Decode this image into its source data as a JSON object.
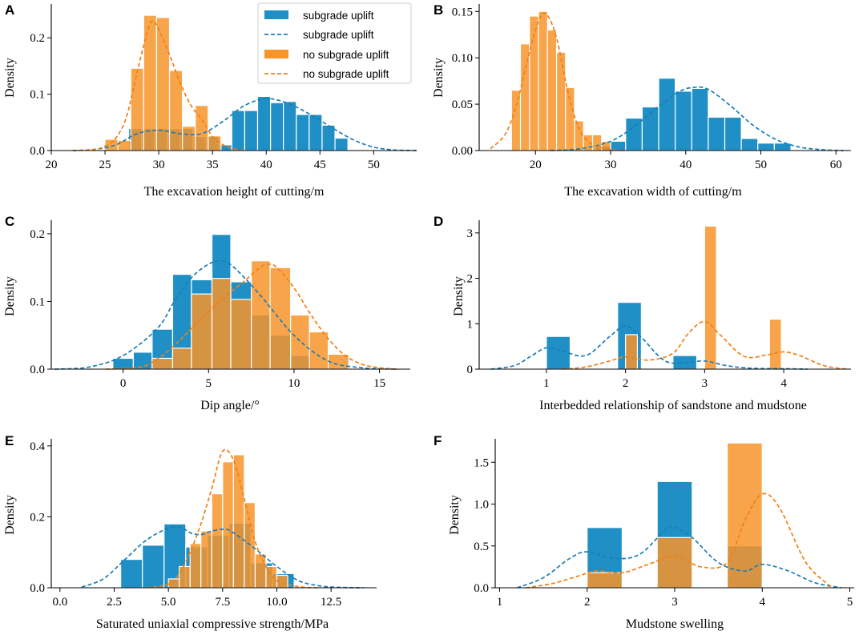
{
  "colors": {
    "uplift": "#1f8fc6",
    "no_uplift": "#f7942a",
    "uplift_line": "#1b7db5",
    "no_uplift_line": "#f27f14"
  },
  "legend": {
    "items": [
      {
        "label": "subgrade uplift",
        "kind": "bar",
        "series": "uplift"
      },
      {
        "label": "subgrade uplift",
        "kind": "line",
        "series": "uplift"
      },
      {
        "label": "no subgrade uplift",
        "kind": "bar",
        "series": "no_uplift"
      },
      {
        "label": "no subgrade uplift",
        "kind": "line",
        "series": "no_uplift"
      }
    ]
  },
  "chart_data": [
    {
      "id": "A",
      "type": "bar",
      "xlabel": "The excavation height of cutting/m",
      "ylabel": "Density",
      "xlim": [
        20,
        54
      ],
      "ylim": [
        0,
        0.26
      ],
      "xticks": [
        20,
        25,
        30,
        35,
        40,
        45,
        50
      ],
      "xtick_labels": [
        "20",
        "25",
        "30",
        "35",
        "40",
        "45",
        "50"
      ],
      "yticks": [
        0,
        0.1,
        0.2
      ],
      "ytick_labels": [
        "0.0",
        "0.1",
        "0.2"
      ],
      "hist": {
        "uplift": {
          "edges": [
            27.2,
            28.4,
            29.6,
            30.8,
            32.0,
            33.2,
            34.4,
            35.6,
            36.8,
            38.0,
            39.2,
            40.4,
            41.6,
            42.8,
            44.0,
            45.2,
            46.4,
            47.6
          ],
          "values": [
            0.039,
            0.039,
            0.039,
            0.039,
            0.039,
            0.025,
            0.025,
            0.01,
            0.071,
            0.071,
            0.096,
            0.085,
            0.087,
            0.064,
            0.064,
            0.045,
            0.022
          ]
        },
        "no_uplift": {
          "edges": [
            25.0,
            26.2,
            27.4,
            28.6,
            29.8,
            31.0,
            32.2,
            33.4,
            34.6,
            35.8
          ],
          "values": [
            0.02,
            0.018,
            0.146,
            0.24,
            0.236,
            0.142,
            0.043,
            0.08,
            0.026
          ]
        }
      },
      "kde": {
        "uplift": {
          "x": [
            22,
            24,
            26,
            28,
            30,
            32,
            34,
            36,
            38,
            40,
            42,
            44,
            46,
            48,
            50,
            52,
            54
          ],
          "y": [
            0.0,
            0.002,
            0.01,
            0.03,
            0.036,
            0.03,
            0.03,
            0.052,
            0.08,
            0.092,
            0.084,
            0.065,
            0.042,
            0.02,
            0.006,
            0.001,
            0.0
          ]
        },
        "no_uplift": {
          "x": [
            22,
            24,
            25,
            26,
            27,
            28,
            29,
            29.5,
            30,
            31,
            32,
            33,
            34,
            35,
            36,
            37,
            38
          ],
          "y": [
            0.0,
            0.002,
            0.008,
            0.022,
            0.06,
            0.14,
            0.215,
            0.23,
            0.215,
            0.17,
            0.12,
            0.08,
            0.055,
            0.025,
            0.01,
            0.003,
            0.0
          ]
        }
      }
    },
    {
      "id": "B",
      "type": "bar",
      "xlabel": "The excavation width of cutting/m",
      "ylabel": "Density",
      "xlim": [
        12.5,
        62
      ],
      "ylim": [
        0,
        0.158
      ],
      "xticks": [
        20,
        30,
        40,
        50,
        60
      ],
      "xtick_labels": [
        "20",
        "30",
        "40",
        "50",
        "60"
      ],
      "yticks": [
        0,
        0.05,
        0.1,
        0.15
      ],
      "ytick_labels": [
        "0.00",
        "0.05",
        "0.10",
        "0.15"
      ],
      "hist": {
        "uplift": {
          "edges": [
            28.0,
            30.0,
            32.0,
            34.2,
            36.4,
            38.6,
            40.8,
            43.0,
            45.2,
            47.4,
            49.6,
            51.8,
            54.0
          ],
          "values": [
            0.005,
            0.01,
            0.035,
            0.047,
            0.078,
            0.064,
            0.067,
            0.036,
            0.036,
            0.013,
            0.008,
            0.008
          ]
        },
        "no_uplift": {
          "edges": [
            16.8,
            18.0,
            19.2,
            20.4,
            21.6,
            22.8,
            24.0,
            25.2,
            26.4,
            27.6,
            28.8,
            30.0
          ],
          "values": [
            0.065,
            0.115,
            0.145,
            0.15,
            0.13,
            0.106,
            0.068,
            0.032,
            0.017,
            0.017,
            0.01
          ]
        }
      },
      "kde": {
        "uplift": {
          "x": [
            22,
            26,
            30,
            33,
            36,
            39,
            41,
            43,
            46,
            49,
            52,
            55,
            58,
            61
          ],
          "y": [
            0.0,
            0.002,
            0.01,
            0.025,
            0.045,
            0.063,
            0.068,
            0.066,
            0.048,
            0.027,
            0.012,
            0.004,
            0.001,
            0.0
          ]
        },
        "no_uplift": {
          "x": [
            14,
            16,
            17.5,
            19,
            20,
            21,
            22,
            23,
            24,
            25,
            26,
            27,
            28,
            30,
            32
          ],
          "y": [
            0.002,
            0.018,
            0.05,
            0.1,
            0.13,
            0.148,
            0.14,
            0.115,
            0.075,
            0.042,
            0.02,
            0.01,
            0.005,
            0.001,
            0.0
          ]
        }
      }
    },
    {
      "id": "C",
      "type": "bar",
      "xlabel": "Dip angle/°",
      "ylabel": "Density",
      "xlim": [
        -4.2,
        16.8
      ],
      "ylim": [
        0,
        0.22
      ],
      "xticks": [
        0,
        5,
        10,
        15
      ],
      "xtick_labels": [
        "0",
        "5",
        "10",
        "15"
      ],
      "yticks": [
        0,
        0.1,
        0.2
      ],
      "ytick_labels": [
        "0.0",
        "0.1",
        "0.2"
      ],
      "hist": {
        "uplift": {
          "edges": [
            -0.6,
            0.6,
            1.7,
            2.9,
            4.0,
            5.2,
            6.3,
            7.5,
            8.6,
            9.8,
            10.9
          ],
          "values": [
            0.016,
            0.025,
            0.059,
            0.14,
            0.132,
            0.199,
            0.129,
            0.08,
            0.05,
            0.02
          ]
        },
        "no_uplift": {
          "edges": [
            1.7,
            2.9,
            4.0,
            5.2,
            6.3,
            7.5,
            8.6,
            9.8,
            10.9,
            12.0,
            13.2
          ],
          "values": [
            0.016,
            0.031,
            0.111,
            0.134,
            0.103,
            0.16,
            0.15,
            0.08,
            0.055,
            0.022
          ]
        }
      },
      "kde": {
        "uplift": {
          "x": [
            -4,
            -2,
            0,
            2,
            3,
            4,
            5,
            5.8,
            6.5,
            8,
            10,
            12,
            14,
            16
          ],
          "y": [
            0.0,
            0.003,
            0.02,
            0.06,
            0.1,
            0.135,
            0.155,
            0.16,
            0.15,
            0.11,
            0.05,
            0.012,
            0.002,
            0.0
          ]
        },
        "no_uplift": {
          "x": [
            -1,
            1,
            2,
            3,
            4,
            5,
            6,
            7,
            8,
            8.5,
            9,
            10,
            11,
            12,
            13,
            14,
            15,
            16
          ],
          "y": [
            0.0,
            0.003,
            0.015,
            0.035,
            0.06,
            0.085,
            0.108,
            0.128,
            0.15,
            0.155,
            0.15,
            0.12,
            0.08,
            0.045,
            0.02,
            0.007,
            0.002,
            0.0
          ]
        }
      }
    },
    {
      "id": "D",
      "type": "bar",
      "xlabel": "Interbedded relationship of sandstone and mudstone",
      "ylabel": "Density",
      "xlim": [
        0.15,
        4.85
      ],
      "ylim": [
        0,
        3.28
      ],
      "xticks": [
        1,
        2,
        3,
        4
      ],
      "xtick_labels": [
        "1",
        "2",
        "3",
        "4"
      ],
      "yticks": [
        0,
        1,
        2,
        3
      ],
      "ytick_labels": [
        "0",
        "1",
        "2",
        "3"
      ],
      "hist": {
        "uplift": {
          "edges": [
            1.0,
            1.3,
            1.9,
            2.2,
            2.6,
            2.9
          ],
          "values": [
            0.72,
            0.0,
            1.47,
            0.0,
            0.3
          ]
        },
        "no_uplift": {
          "edges": [
            2.0,
            2.15,
            3.0,
            3.15,
            3.82,
            3.97
          ],
          "values": [
            0.76,
            0.0,
            3.15,
            0.0,
            1.1
          ]
        }
      },
      "kde": {
        "uplift": {
          "x": [
            0.3,
            0.6,
            0.8,
            1.0,
            1.2,
            1.5,
            1.8,
            2.0,
            2.2,
            2.5,
            2.8,
            3.0,
            3.3,
            3.6,
            4.0,
            4.3
          ],
          "y": [
            0.0,
            0.08,
            0.28,
            0.47,
            0.4,
            0.3,
            0.72,
            0.95,
            0.7,
            0.18,
            0.15,
            0.18,
            0.07,
            0.02,
            0.01,
            0.0
          ]
        },
        "no_uplift": {
          "x": [
            1.2,
            1.5,
            1.8,
            2.0,
            2.3,
            2.6,
            2.8,
            3.0,
            3.2,
            3.5,
            3.8,
            4.0,
            4.2,
            4.5,
            4.8
          ],
          "y": [
            0.0,
            0.05,
            0.18,
            0.27,
            0.2,
            0.35,
            0.8,
            1.05,
            0.75,
            0.28,
            0.32,
            0.38,
            0.3,
            0.08,
            0.0
          ]
        }
      }
    },
    {
      "id": "E",
      "type": "bar",
      "xlabel": "Saturated uniaxial compressive strength/MPa",
      "ylabel": "Density",
      "xlim": [
        -0.4,
        14.6
      ],
      "ylim": [
        0,
        0.42
      ],
      "xticks": [
        0,
        2.5,
        5,
        7.5,
        10,
        12.5
      ],
      "xtick_labels": [
        "0.0",
        "2.5",
        "5.0",
        "7.5",
        "10.0",
        "12.5"
      ],
      "yticks": [
        0,
        0.2,
        0.4
      ],
      "ytick_labels": [
        "0.0",
        "0.2",
        "0.4"
      ],
      "hist": {
        "uplift": {
          "edges": [
            2.8,
            3.8,
            4.8,
            5.8,
            6.8,
            7.8,
            8.8,
            9.8,
            10.8
          ],
          "values": [
            0.08,
            0.12,
            0.18,
            0.115,
            0.148,
            0.182,
            0.07,
            0.04,
            0.04
          ]
        },
        "no_uplift": {
          "edges": [
            5.0,
            5.5,
            6.0,
            6.5,
            7.0,
            7.5,
            8.0,
            8.5,
            9.0,
            9.5,
            10.0,
            10.5
          ],
          "values": [
            0.025,
            0.06,
            0.125,
            0.16,
            0.265,
            0.355,
            0.375,
            0.24,
            0.095,
            0.06,
            0.035
          ]
        }
      },
      "kde": {
        "uplift": {
          "x": [
            1,
            2,
            3,
            4,
            5,
            5.6,
            6,
            6.5,
            7,
            7.6,
            8,
            9,
            10,
            11,
            12,
            13,
            14
          ],
          "y": [
            0.002,
            0.025,
            0.08,
            0.135,
            0.168,
            0.17,
            0.155,
            0.15,
            0.16,
            0.165,
            0.155,
            0.11,
            0.06,
            0.02,
            0.005,
            0.001,
            0.0
          ]
        },
        "no_uplift": {
          "x": [
            4,
            5,
            5.5,
            6,
            6.5,
            7,
            7.5,
            8,
            8.5,
            9,
            9.5,
            10,
            11,
            12
          ],
          "y": [
            0.0,
            0.01,
            0.04,
            0.1,
            0.18,
            0.28,
            0.385,
            0.36,
            0.25,
            0.13,
            0.06,
            0.02,
            0.003,
            0.0
          ]
        }
      }
    },
    {
      "id": "F",
      "type": "bar",
      "xlabel": "Mudstone swelling",
      "ylabel": "Density",
      "xlim": [
        0.95,
        5.05
      ],
      "ylim": [
        0,
        1.78
      ],
      "xticks": [
        1,
        2,
        3,
        4,
        5
      ],
      "xtick_labels": [
        "1",
        "2",
        "3",
        "4",
        "5"
      ],
      "yticks": [
        0,
        0.5,
        1.0,
        1.5
      ],
      "ytick_labels": [
        "0.0",
        "0.5",
        "1.0",
        "1.5"
      ],
      "hist": {
        "uplift": {
          "edges": [
            2.0,
            2.4,
            2.8,
            3.2,
            3.6,
            4.0
          ],
          "values": [
            0.72,
            0.0,
            1.27,
            0.0,
            0.5
          ]
        },
        "no_uplift": {
          "edges": [
            2.0,
            2.4,
            2.8,
            3.2,
            3.6,
            4.0
          ],
          "values": [
            0.18,
            0.0,
            0.6,
            0.0,
            1.73
          ]
        }
      },
      "kde": {
        "uplift": {
          "x": [
            1.2,
            1.5,
            1.8,
            2.0,
            2.3,
            2.6,
            2.9,
            3.0,
            3.2,
            3.5,
            3.8,
            4.0,
            4.3,
            4.6,
            4.9
          ],
          "y": [
            0.0,
            0.12,
            0.35,
            0.43,
            0.35,
            0.4,
            0.7,
            0.72,
            0.6,
            0.3,
            0.2,
            0.28,
            0.2,
            0.06,
            0.0
          ]
        },
        "no_uplift": {
          "x": [
            1.3,
            1.6,
            1.9,
            2.1,
            2.4,
            2.7,
            3.0,
            3.3,
            3.6,
            3.8,
            4.0,
            4.2,
            4.5,
            4.8
          ],
          "y": [
            0.0,
            0.05,
            0.14,
            0.2,
            0.18,
            0.28,
            0.38,
            0.25,
            0.3,
            0.8,
            1.12,
            0.95,
            0.3,
            0.0
          ]
        }
      }
    }
  ]
}
